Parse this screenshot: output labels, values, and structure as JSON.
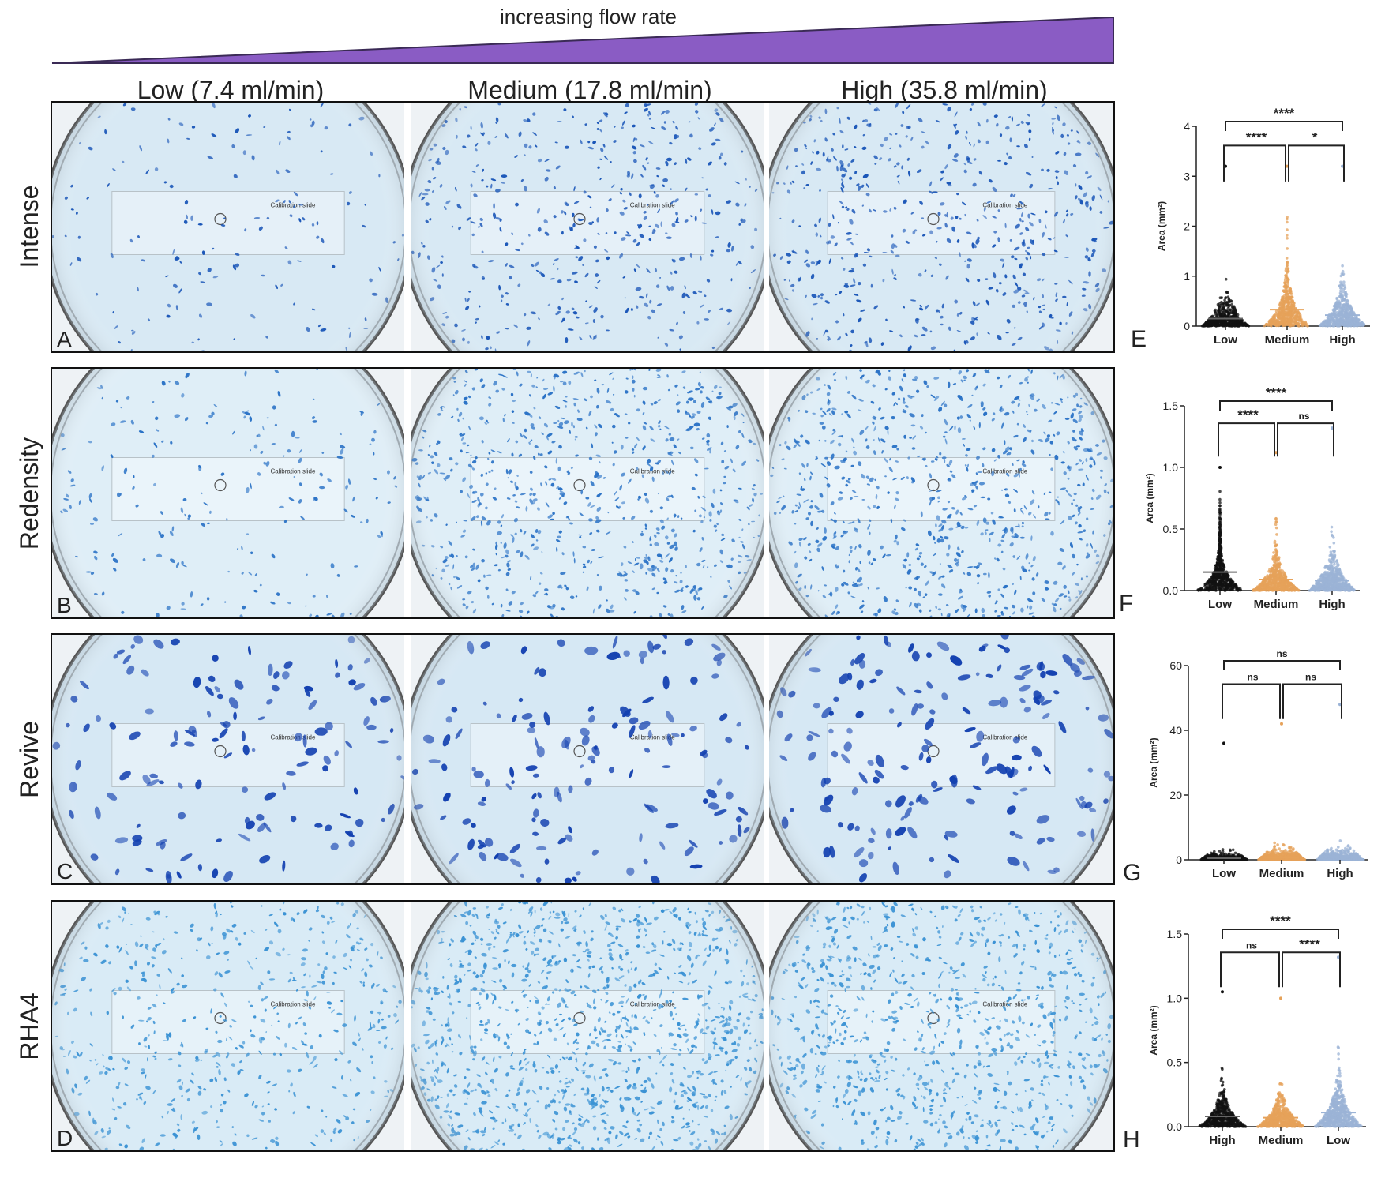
{
  "header": {
    "gradient_label": "increasing flow rate",
    "gradient_color": "#8a5cc4",
    "columns": [
      "Low (7.4 ml/min)",
      "Medium (17.8 ml/min)",
      "High (35.8 ml/min)"
    ]
  },
  "rows": [
    {
      "label": "Intense",
      "panel": "A",
      "dot_color": "#1a56b8",
      "bg": "#d8e9f4"
    },
    {
      "label": "Redensity",
      "panel": "B",
      "dot_color": "#2a72c6",
      "bg": "#dfeef7"
    },
    {
      "label": "Revive",
      "panel": "C",
      "dot_color": "#1240b0",
      "bg": "#d6e8f4"
    },
    {
      "label": "RHA4",
      "panel": "D",
      "dot_color": "#3a92d4",
      "bg": "#d9ebf6"
    }
  ],
  "overlay_text": {
    "calibration": "Calibration slide"
  },
  "colors": {
    "group1": "#111111",
    "group2": "#e6a25a",
    "group3": "#9bb3d6"
  },
  "chart_data": [
    {
      "panel": "E",
      "type": "scatter",
      "categories": [
        "Low",
        "Medium",
        "High"
      ],
      "ylabel": "Area (mm²)",
      "yticks": [
        "0",
        "1",
        "2",
        "3",
        "4"
      ],
      "ylim": [
        0,
        4
      ],
      "medians": [
        0.15,
        0.33,
        0.22
      ],
      "max_values": [
        3.2,
        3.2,
        3.2
      ],
      "significance": [
        {
          "from": 0,
          "to": 1,
          "label": "****"
        },
        {
          "from": 1,
          "to": 2,
          "label": "*"
        },
        {
          "from": 0,
          "to": 2,
          "label": "****"
        }
      ]
    },
    {
      "panel": "F",
      "type": "scatter",
      "categories": [
        "Low",
        "Medium",
        "High"
      ],
      "ylabel": "Area (mm²)",
      "yticks": [
        "0.0",
        "0.5",
        "1.0",
        "1.5"
      ],
      "ylim": [
        0,
        1.5
      ],
      "medians": [
        0.15,
        0.09,
        0.08
      ],
      "max_values": [
        1.0,
        1.12,
        1.32
      ],
      "significance": [
        {
          "from": 0,
          "to": 1,
          "label": "****"
        },
        {
          "from": 1,
          "to": 2,
          "label": "ns"
        },
        {
          "from": 0,
          "to": 2,
          "label": "****"
        }
      ]
    },
    {
      "panel": "G",
      "type": "scatter",
      "categories": [
        "Low",
        "Medium",
        "High"
      ],
      "ylabel": "Area (mm²)",
      "yticks": [
        "0",
        "20",
        "40",
        "60"
      ],
      "ylim": [
        0,
        60
      ],
      "medians": [
        0.5,
        0.8,
        0.9
      ],
      "max_values": [
        36,
        42,
        48
      ],
      "significance": [
        {
          "from": 0,
          "to": 1,
          "label": "ns"
        },
        {
          "from": 1,
          "to": 2,
          "label": "ns"
        },
        {
          "from": 0,
          "to": 2,
          "label": "ns"
        }
      ]
    },
    {
      "panel": "H",
      "type": "scatter",
      "categories": [
        "High",
        "Medium",
        "Low"
      ],
      "ylabel": "Area (mm²)",
      "yticks": [
        "0.0",
        "0.5",
        "1.0",
        "1.5"
      ],
      "ylim": [
        0,
        1.5
      ],
      "medians": [
        0.08,
        0.07,
        0.11
      ],
      "max_values": [
        1.05,
        1.0,
        1.32
      ],
      "significance": [
        {
          "from": 0,
          "to": 1,
          "label": "ns"
        },
        {
          "from": 1,
          "to": 2,
          "label": "****"
        },
        {
          "from": 0,
          "to": 2,
          "label": "****"
        }
      ]
    }
  ]
}
